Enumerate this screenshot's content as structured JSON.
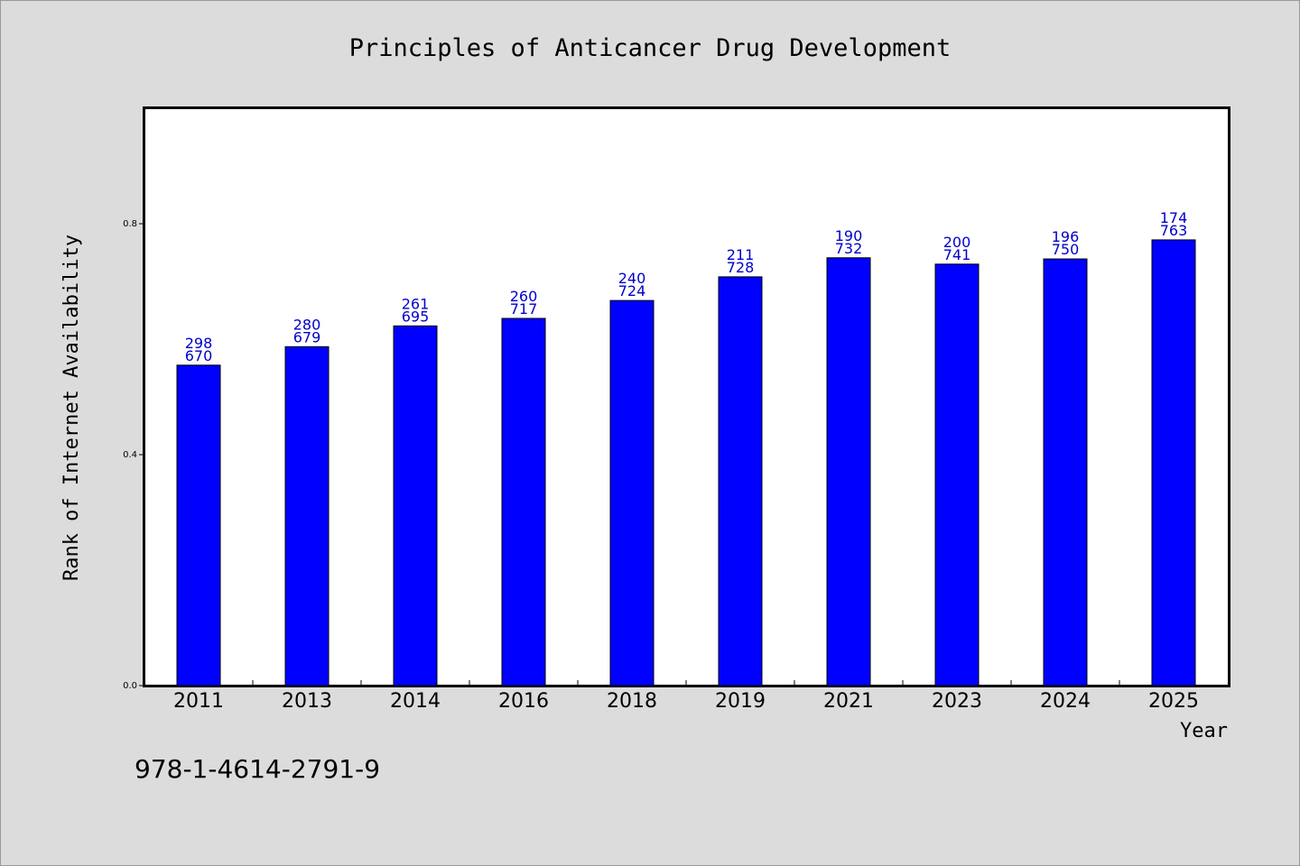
{
  "isbn": "978-1-4614-2791-9",
  "colors": {
    "bar": "#0000ff",
    "label": "#0000cc",
    "background": "#dcdcdc",
    "plot": "#ffffff"
  },
  "chart_data": {
    "type": "bar",
    "title": "Principles of Anticancer Drug Development",
    "xlabel": "Year",
    "ylabel": "Rank of Internet Availability",
    "ylim": [
      0,
      1.0
    ],
    "yticks": [
      0.0,
      0.4,
      0.8
    ],
    "ytick_labels": [
      "0.0",
      "0.4",
      "0.8"
    ],
    "grid": false,
    "categories": [
      "2011",
      "2013",
      "2014",
      "2016",
      "2018",
      "2019",
      "2021",
      "2023",
      "2024",
      "2025"
    ],
    "values": [
      0.555,
      0.587,
      0.623,
      0.636,
      0.667,
      0.708,
      0.741,
      0.73,
      0.739,
      0.772
    ],
    "labels_top": [
      "298",
      "280",
      "261",
      "260",
      "240",
      "211",
      "190",
      "200",
      "196",
      "174"
    ],
    "labels_bottom": [
      "670",
      "679",
      "695",
      "717",
      "724",
      "728",
      "732",
      "741",
      "750",
      "763"
    ]
  }
}
